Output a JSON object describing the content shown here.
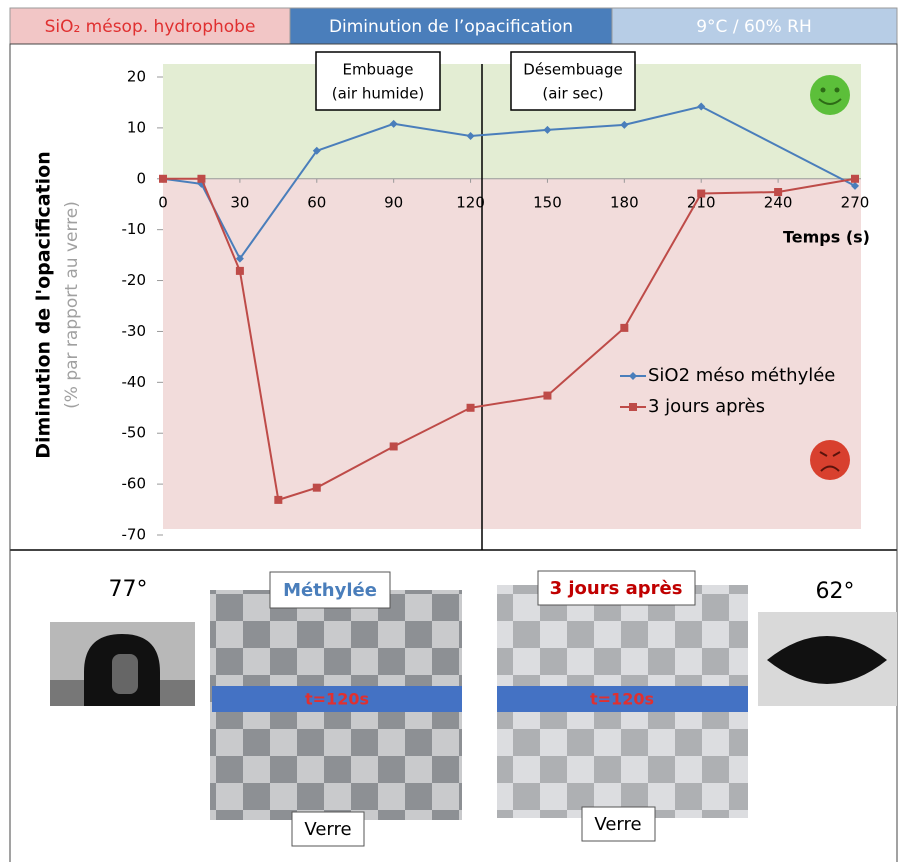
{
  "header": {
    "material": "SiO₂ mésop. hydrophobe",
    "measure": "Diminution de l’opacification",
    "conditions": "9°C / 60% RH"
  },
  "chart_data": {
    "type": "line",
    "y_label": "Diminution de l'opacification",
    "y_label_sub": "(% par rapport au verre)",
    "x_label": "Temps (s)",
    "annotations": [
      [
        "Embuage",
        "(air humide)"
      ],
      [
        "Désembuage",
        "(air sec)"
      ]
    ],
    "xlim": [
      0,
      270
    ],
    "ylim": [
      -70,
      20
    ],
    "xticks": [
      0,
      30,
      60,
      90,
      120,
      150,
      180,
      210,
      240,
      270
    ],
    "yticks": [
      -70,
      -60,
      -50,
      -40,
      -30,
      -20,
      -10,
      0,
      10,
      20
    ],
    "series": [
      {
        "name": "SiO2 méso méthylée",
        "color": "#4a7ebb",
        "marker": "diamond",
        "x": [
          0,
          15,
          30,
          60,
          90,
          120,
          150,
          180,
          210,
          270
        ],
        "values": [
          0,
          -1,
          -15.7,
          5.5,
          10.8,
          8.4,
          9.6,
          10.6,
          14.2,
          -1.4
        ]
      },
      {
        "name": "3 jours après",
        "color": "#be4b48",
        "marker": "square",
        "x": [
          0,
          15,
          30,
          45,
          60,
          90,
          120,
          150,
          180,
          210,
          240,
          270
        ],
        "values": [
          0,
          0,
          -18.1,
          -63.1,
          -60.7,
          -52.6,
          -45,
          -42.6,
          -29.3,
          -2.9,
          -2.6,
          0
        ]
      }
    ]
  },
  "images": {
    "left_angle": "77°",
    "right_angle": "62°",
    "left_label": "Méthylée",
    "right_label": "3 jours après",
    "left_time": "t=120s",
    "right_time": "t=120s",
    "left_substrate": "Verre",
    "right_substrate": "Verre"
  }
}
